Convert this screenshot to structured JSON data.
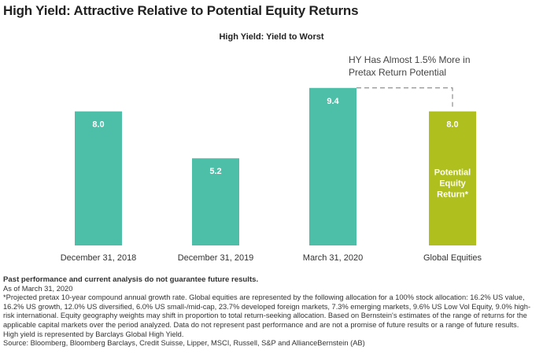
{
  "page_title": "High Yield: Attractive Relative to Potential Equity Returns",
  "chart_data": {
    "type": "bar",
    "title": "High Yield:  Yield to Worst",
    "categories": [
      "December 31, 2018",
      "December 31, 2019",
      "March 31, 2020",
      "Global Equities"
    ],
    "values": [
      8.0,
      5.2,
      9.4,
      8.0
    ],
    "value_labels": [
      "8.0",
      "5.2",
      "9.4",
      "8.0"
    ],
    "ylim": [
      0,
      10
    ],
    "xlabel": "",
    "ylabel": "",
    "grid": false,
    "colors": [
      "#4dbfa8",
      "#4dbfa8",
      "#4dbfa8",
      "#aebf1e"
    ],
    "annotation": {
      "line1": "HY Has Almost 1.5% More in",
      "line2": "Pretax Return Potential"
    },
    "equity_bar_label": [
      "Potential",
      "Equity",
      "Return*"
    ]
  },
  "footnotes": {
    "disclaimer": "Past performance and current analysis do not guarantee future results.",
    "lines": [
      "As of March 31, 2020",
      "*Projected pretax 10-year compound annual growth rate. Global equities are represented by the following allocation for a 100% stock allocation: 16.2% US value, 16.2% US growth, 12.0% US diversified, 6.0% US small-/mid-cap, 23.7% developed foreign markets, 7.3% emerging markets, 9.6% US Low Vol Equity, 9.0% high-risk international. Equity geography weights may shift in proportion to total return-seeking allocation. Based on Bernstein's estimates of the range of returns for the applicable capital markets over the period analyzed. Data do not represent past performance and are not a promise of future results or a range of future results.",
      "High yield is represented by Barclays Global High Yield.",
      "Source: Bloomberg, Bloomberg Barclays, Credit Suisse, Lipper, MSCI, Russell, S&P and AllianceBernstein (AB)"
    ]
  }
}
